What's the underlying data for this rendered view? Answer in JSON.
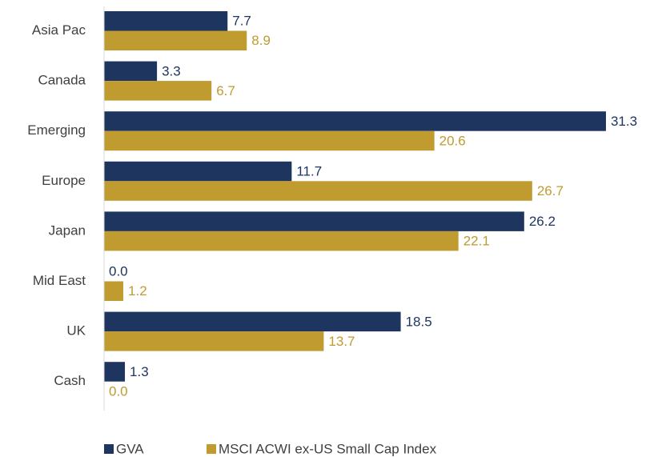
{
  "chart_data": {
    "type": "bar",
    "orientation": "horizontal",
    "categories": [
      "Asia Pac",
      "Canada",
      "Emerging",
      "Europe",
      "Japan",
      "Mid East",
      "UK",
      "Cash"
    ],
    "series": [
      {
        "name": "GVA",
        "color": "#1e3560",
        "values": [
          7.7,
          3.3,
          31.3,
          11.7,
          26.2,
          0.0,
          18.5,
          1.3
        ],
        "value_labels": [
          "7.7",
          "3.3",
          "31.3",
          "11.7",
          "26.2",
          "0.0",
          "18.5",
          "1.3"
        ]
      },
      {
        "name": "MSCI ACWI ex-US Small Cap Index",
        "color": "#bf9b30",
        "values": [
          8.9,
          6.7,
          20.6,
          26.7,
          22.1,
          1.2,
          13.7,
          0.0
        ],
        "value_labels": [
          "8.9",
          "6.7",
          "20.6",
          "26.7",
          "22.1",
          "1.2",
          "13.7",
          "0.0"
        ]
      }
    ],
    "xlim": [
      0,
      32
    ],
    "legend": "bottom"
  }
}
